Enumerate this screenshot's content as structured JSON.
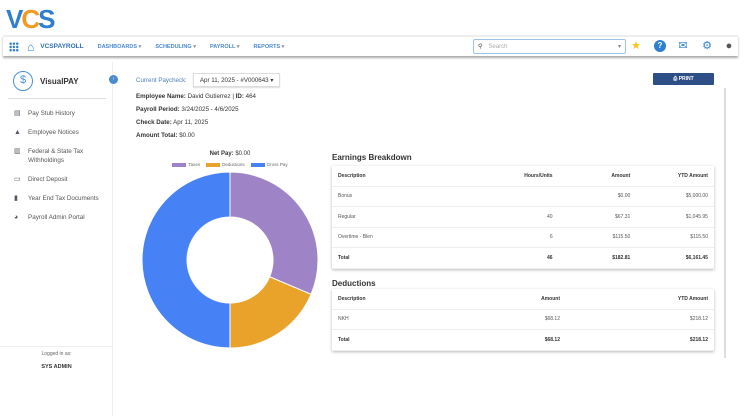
{
  "logo": {
    "text_v": "V",
    "text_c": "C",
    "text_s": "S"
  },
  "nav": {
    "brand": "VCSPAYROLL",
    "menus": [
      "DASHBOARDS",
      "SCHEDULING",
      "PAYROLL",
      "REPORTS"
    ],
    "search_placeholder": "Search"
  },
  "sidebar": {
    "title": "VisualPAY",
    "items": [
      {
        "label": "Pay Stub History",
        "icon": "document-icon"
      },
      {
        "label": "Employee Notices",
        "icon": "bell-icon"
      },
      {
        "label": "Federal & State Tax Withholdings",
        "icon": "bank-icon"
      },
      {
        "label": "Direct Deposit",
        "icon": "card-icon"
      },
      {
        "label": "Year End Tax Documents",
        "icon": "file-icon"
      },
      {
        "label": "Payroll Admin Portal",
        "icon": "admin-icon"
      }
    ],
    "logged_in_label": "Logged in as:",
    "user": "SYS ADMIN"
  },
  "paycheck": {
    "label": "Current Paycheck:",
    "value": "Apr 11, 2025 - #V000643"
  },
  "info": {
    "emp_label": "Employee Name:",
    "emp_value": "David Gutierrez",
    "id_label": "ID:",
    "id_value": "464",
    "period_label": "Payroll Period:",
    "period_value": "3/24/2025 - 4/6/2025",
    "check_label": "Check Date:",
    "check_value": "Apr 11, 2025",
    "amount_label": "Amount Total:",
    "amount_value": "$0.00"
  },
  "print_label": "PRINT",
  "chart_data": {
    "type": "pie",
    "title_label": "Net Pay:",
    "title_value": "$0.00",
    "legend_placement": "top",
    "categories": [
      "Taxes",
      "Deductions",
      "Gross Pay"
    ],
    "values": [
      114.69,
      68.12,
      182.81
    ],
    "colors": [
      "#9e84c7",
      "#e9a32a",
      "#4682f6"
    ]
  },
  "earnings": {
    "title": "Earnings Breakdown",
    "headers": [
      "Description",
      "Hours/Units",
      "Amount",
      "YTD Amount"
    ],
    "rows": [
      [
        "Bonus",
        "",
        "$0.00",
        "$5,000.00"
      ],
      [
        "Regular",
        "40",
        "$67.31",
        "$1,045.95"
      ],
      [
        "Overtime - Blen",
        "6",
        "$115.50",
        "$115.50"
      ]
    ],
    "total": [
      "Total",
      "46",
      "$182.81",
      "$6,161.45"
    ]
  },
  "deductions": {
    "title": "Deductions",
    "headers": [
      "Description",
      "Amount",
      "YTD Amount"
    ],
    "rows": [
      [
        "NKH",
        "$68.12",
        "$218.12"
      ]
    ],
    "total": [
      "Total",
      "$68.12",
      "$218.12"
    ]
  }
}
